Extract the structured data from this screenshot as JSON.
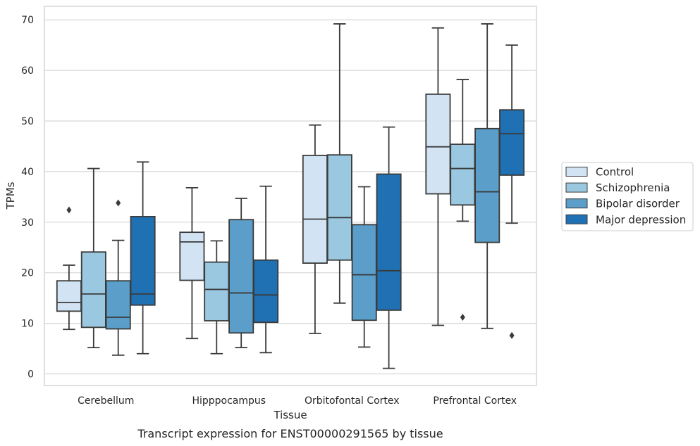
{
  "chart_data": {
    "type": "box",
    "caption": "Transcript expression for ENST00000291565 by tissue",
    "xlabel": "Tissue",
    "ylabel": "TPMs",
    "ylim": [
      -2.3,
      72.6
    ],
    "yticks": [
      0,
      10,
      20,
      30,
      40,
      50,
      60,
      70
    ],
    "grid": "horizontal",
    "legend_position": "right",
    "categories": [
      "Cerebellum",
      "Hipppocampus",
      "Orbitofontal Cortex",
      "Prefrontal Cortex"
    ],
    "series": [
      {
        "name": "Control",
        "color": "#d2e3f3",
        "boxes": [
          {
            "whislo": 8.8,
            "q1": 12.4,
            "med": 14.1,
            "q3": 18.4,
            "whishi": 21.5,
            "fliers": [
              32.4
            ]
          },
          {
            "whislo": 7.0,
            "q1": 18.5,
            "med": 26.1,
            "q3": 28.0,
            "whishi": 36.8,
            "fliers": []
          },
          {
            "whislo": 8.0,
            "q1": 21.9,
            "med": 30.6,
            "q3": 43.2,
            "whishi": 49.2,
            "fliers": []
          },
          {
            "whislo": 9.6,
            "q1": 35.6,
            "med": 44.9,
            "q3": 55.3,
            "whishi": 68.4,
            "fliers": []
          }
        ]
      },
      {
        "name": "Schizophrenia",
        "color": "#9ac8e0",
        "boxes": [
          {
            "whislo": 5.2,
            "q1": 9.2,
            "med": 15.8,
            "q3": 24.1,
            "whishi": 40.6,
            "fliers": []
          },
          {
            "whislo": 4.0,
            "q1": 10.5,
            "med": 16.7,
            "q3": 22.1,
            "whishi": 26.3,
            "fliers": []
          },
          {
            "whislo": 14.0,
            "q1": 22.5,
            "med": 30.9,
            "q3": 43.3,
            "whishi": 69.2,
            "fliers": []
          },
          {
            "whislo": 30.2,
            "q1": 33.4,
            "med": 40.6,
            "q3": 45.4,
            "whishi": 58.2,
            "fliers": [
              11.2
            ]
          }
        ]
      },
      {
        "name": "Bipolar disorder",
        "color": "#5a9ec9",
        "boxes": [
          {
            "whislo": 3.7,
            "q1": 8.9,
            "med": 11.2,
            "q3": 18.4,
            "whishi": 26.4,
            "fliers": [
              33.8
            ]
          },
          {
            "whislo": 5.2,
            "q1": 8.1,
            "med": 16.0,
            "q3": 30.5,
            "whishi": 34.7,
            "fliers": []
          },
          {
            "whislo": 5.3,
            "q1": 10.6,
            "med": 19.6,
            "q3": 29.5,
            "whishi": 37.0,
            "fliers": []
          },
          {
            "whislo": 9.0,
            "q1": 26.0,
            "med": 36.0,
            "q3": 48.5,
            "whishi": 69.2,
            "fliers": []
          }
        ]
      },
      {
        "name": "Major depression",
        "color": "#2070b4",
        "boxes": [
          {
            "whislo": 4.0,
            "q1": 13.6,
            "med": 15.8,
            "q3": 31.1,
            "whishi": 41.9,
            "fliers": []
          },
          {
            "whislo": 4.2,
            "q1": 10.2,
            "med": 15.6,
            "q3": 22.5,
            "whishi": 37.1,
            "fliers": []
          },
          {
            "whislo": 1.1,
            "q1": 12.6,
            "med": 20.4,
            "q3": 39.5,
            "whishi": 48.8,
            "fliers": []
          },
          {
            "whislo": 29.8,
            "q1": 39.3,
            "med": 47.5,
            "q3": 52.2,
            "whishi": 65.0,
            "fliers": [
              7.6
            ]
          }
        ]
      }
    ]
  }
}
